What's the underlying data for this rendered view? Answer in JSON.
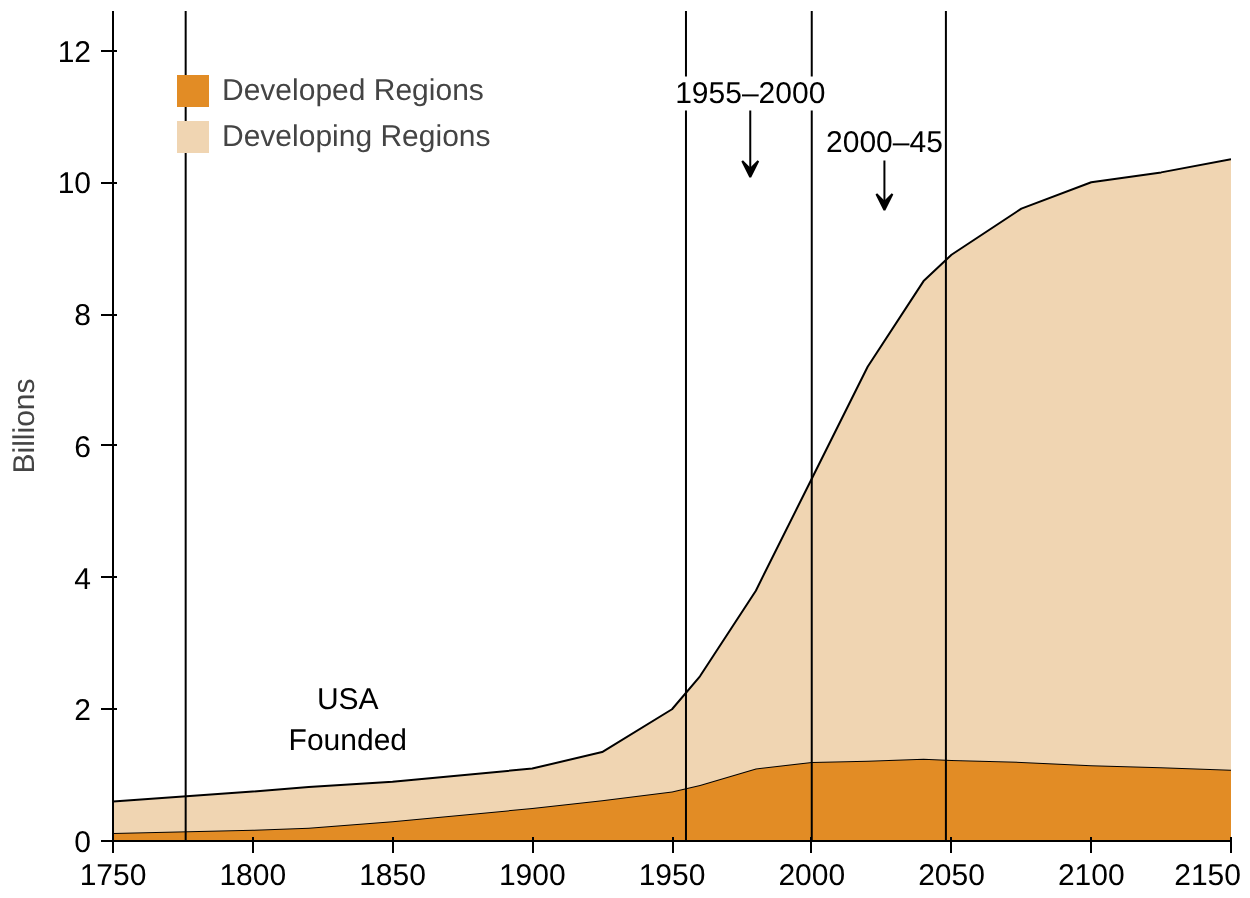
{
  "chart_data": {
    "type": "area",
    "stacked": true,
    "ylabel": "Billions",
    "x": [
      1750,
      1800,
      1820,
      1850,
      1900,
      1925,
      1950,
      1960,
      1980,
      2000,
      2020,
      2040,
      2050,
      2075,
      2100,
      2125,
      2150
    ],
    "series": [
      {
        "name": "Developed Regions",
        "color": "#e28c25",
        "values": [
          0.12,
          0.17,
          0.2,
          0.3,
          0.5,
          0.62,
          0.75,
          0.85,
          1.1,
          1.2,
          1.22,
          1.25,
          1.23,
          1.2,
          1.15,
          1.12,
          1.08
        ]
      },
      {
        "name": "Developing Regions",
        "color": "#f0d5b2",
        "values": [
          0.48,
          0.58,
          0.62,
          0.6,
          0.6,
          0.73,
          1.25,
          1.65,
          2.7,
          4.3,
          5.98,
          7.25,
          7.67,
          8.4,
          8.85,
          9.03,
          9.27
        ]
      }
    ],
    "xlim": [
      1750,
      2150
    ],
    "ylim": [
      0,
      12.6
    ],
    "xticks": [
      1750,
      1800,
      1850,
      1900,
      1950,
      2000,
      2050,
      2100,
      2150
    ],
    "yticks": [
      0,
      2,
      4,
      6,
      8,
      10,
      12
    ],
    "ref_lines": [
      {
        "axis": "x",
        "value": 1776
      },
      {
        "axis": "x",
        "value": 1955
      },
      {
        "axis": "x",
        "value": 2000
      },
      {
        "axis": "x",
        "value": 2048
      }
    ],
    "annotations": [
      "USA Founded",
      "1955–2000",
      "2000–45"
    ],
    "legend": "top left",
    "grid": false
  }
}
